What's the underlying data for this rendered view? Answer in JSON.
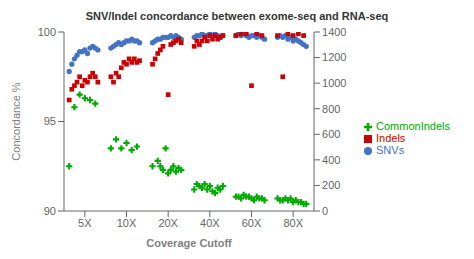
{
  "chart_data": {
    "type": "scatter",
    "title": "SNV/Indel concordance between exome-seq and RNA-seq",
    "xlabel": "Coverage Cutoff",
    "ylabel": "Concordance %",
    "xlim": [
      0,
      96
    ],
    "xticks": [
      {
        "value": 8,
        "label": "5X"
      },
      {
        "value": 24,
        "label": "10X"
      },
      {
        "value": 40,
        "label": "20X"
      },
      {
        "value": 56,
        "label": "40X"
      },
      {
        "value": 72,
        "label": "60X"
      },
      {
        "value": 88,
        "label": "80X"
      }
    ],
    "ylim": [
      90,
      100
    ],
    "yticks": [
      90,
      95,
      100
    ],
    "y2lim": [
      0,
      1400
    ],
    "y2ticks": [
      0,
      200,
      400,
      600,
      800,
      1000,
      1200,
      1400
    ],
    "legend": "right",
    "series": [
      {
        "name": "SNVs",
        "color": "#4472C4",
        "marker": "circle",
        "x": [
          2,
          3,
          4,
          5,
          6,
          7,
          8,
          9,
          10,
          11,
          12,
          13,
          18,
          19,
          20,
          21,
          22,
          23,
          24,
          25,
          26,
          27,
          28,
          29,
          34,
          35,
          36,
          37,
          38,
          39,
          40,
          41,
          42,
          43,
          44,
          45,
          50,
          51,
          52,
          53,
          54,
          55,
          56,
          57,
          58,
          59,
          60,
          61,
          66,
          67,
          68,
          69,
          70,
          71,
          72,
          73,
          74,
          75,
          76,
          77,
          82,
          83,
          84,
          85,
          86,
          87,
          88,
          89,
          90,
          91,
          92,
          93
        ],
        "values": [
          97.8,
          98.2,
          98.5,
          98.7,
          98.9,
          98.9,
          99.0,
          98.8,
          99.1,
          99.2,
          99.1,
          99.0,
          99.1,
          99.2,
          99.3,
          99.4,
          99.3,
          99.4,
          99.5,
          99.5,
          99.6,
          99.5,
          99.5,
          99.4,
          99.4,
          99.5,
          99.6,
          99.6,
          99.7,
          99.7,
          99.7,
          99.8,
          99.7,
          99.8,
          99.7,
          99.6,
          99.7,
          99.8,
          99.8,
          99.9,
          99.8,
          99.8,
          99.9,
          99.8,
          99.9,
          99.8,
          99.7,
          99.8,
          99.8,
          99.9,
          99.8,
          99.9,
          99.8,
          99.7,
          99.8,
          99.8,
          99.7,
          99.8,
          99.7,
          99.6,
          99.7,
          99.8,
          99.7,
          99.8,
          99.6,
          99.7,
          99.5,
          99.6,
          99.5,
          99.4,
          99.3,
          99.2
        ]
      },
      {
        "name": "Indels",
        "color": "#CC0000",
        "marker": "square",
        "x": [
          2,
          3,
          4,
          5,
          6,
          7,
          8,
          9,
          10,
          11,
          12,
          13,
          18,
          19,
          20,
          21,
          22,
          23,
          24,
          25,
          26,
          27,
          28,
          29,
          34,
          35,
          36,
          37,
          38,
          40,
          41,
          42,
          43,
          44,
          45,
          50,
          51,
          52,
          53,
          54,
          55,
          56,
          57,
          58,
          59,
          60,
          61,
          66,
          68,
          70,
          72,
          74,
          76,
          82,
          84,
          86,
          88,
          90,
          92
        ],
        "values": [
          96.2,
          96.8,
          97.0,
          97.2,
          97.5,
          97.0,
          97.3,
          97.2,
          97.5,
          97.7,
          97.5,
          97.2,
          97.5,
          97.2,
          97.7,
          97.5,
          98.0,
          98.3,
          98.2,
          98.5,
          98.3,
          98.5,
          98.3,
          98.4,
          98.2,
          98.5,
          98.8,
          99.0,
          99.2,
          96.5,
          99.3,
          99.4,
          99.5,
          99.6,
          99.4,
          99.2,
          99.5,
          99.3,
          99.5,
          99.7,
          99.5,
          99.8,
          99.6,
          99.8,
          99.6,
          99.7,
          99.8,
          99.8,
          99.9,
          99.9,
          97.0,
          99.9,
          99.8,
          99.8,
          97.5,
          99.9,
          99.8,
          99.9,
          99.8
        ]
      },
      {
        "name": "CommonIndels",
        "color": "#00AA00",
        "marker": "plus",
        "x": [
          2,
          4,
          6,
          8,
          10,
          12,
          18,
          20,
          22,
          24,
          26,
          28,
          34,
          36,
          37,
          38,
          39,
          40,
          41,
          42,
          43,
          44,
          45,
          50,
          51,
          52,
          53,
          54,
          55,
          56,
          57,
          58,
          59,
          60,
          61,
          66,
          67,
          68,
          69,
          70,
          71,
          72,
          73,
          74,
          75,
          76,
          77,
          82,
          83,
          84,
          85,
          86,
          87,
          88,
          89,
          90,
          91,
          92,
          93
        ],
        "values": [
          92.5,
          95.8,
          96.5,
          96.3,
          96.2,
          96.0,
          93.5,
          94.0,
          93.5,
          93.8,
          93.4,
          93.6,
          92.5,
          92.8,
          92.5,
          92.3,
          93.5,
          92.1,
          92.3,
          92.5,
          92.2,
          92.4,
          92.3,
          91.2,
          91.5,
          91.4,
          91.3,
          91.5,
          91.2,
          91.4,
          91.1,
          91.0,
          91.3,
          91.2,
          91.4,
          90.8,
          90.8,
          90.7,
          90.9,
          90.8,
          90.8,
          90.7,
          90.6,
          90.8,
          90.7,
          90.7,
          90.6,
          90.7,
          90.6,
          90.6,
          90.7,
          90.6,
          90.7,
          90.5,
          90.6,
          90.5,
          90.5,
          90.4,
          90.4
        ]
      }
    ]
  }
}
